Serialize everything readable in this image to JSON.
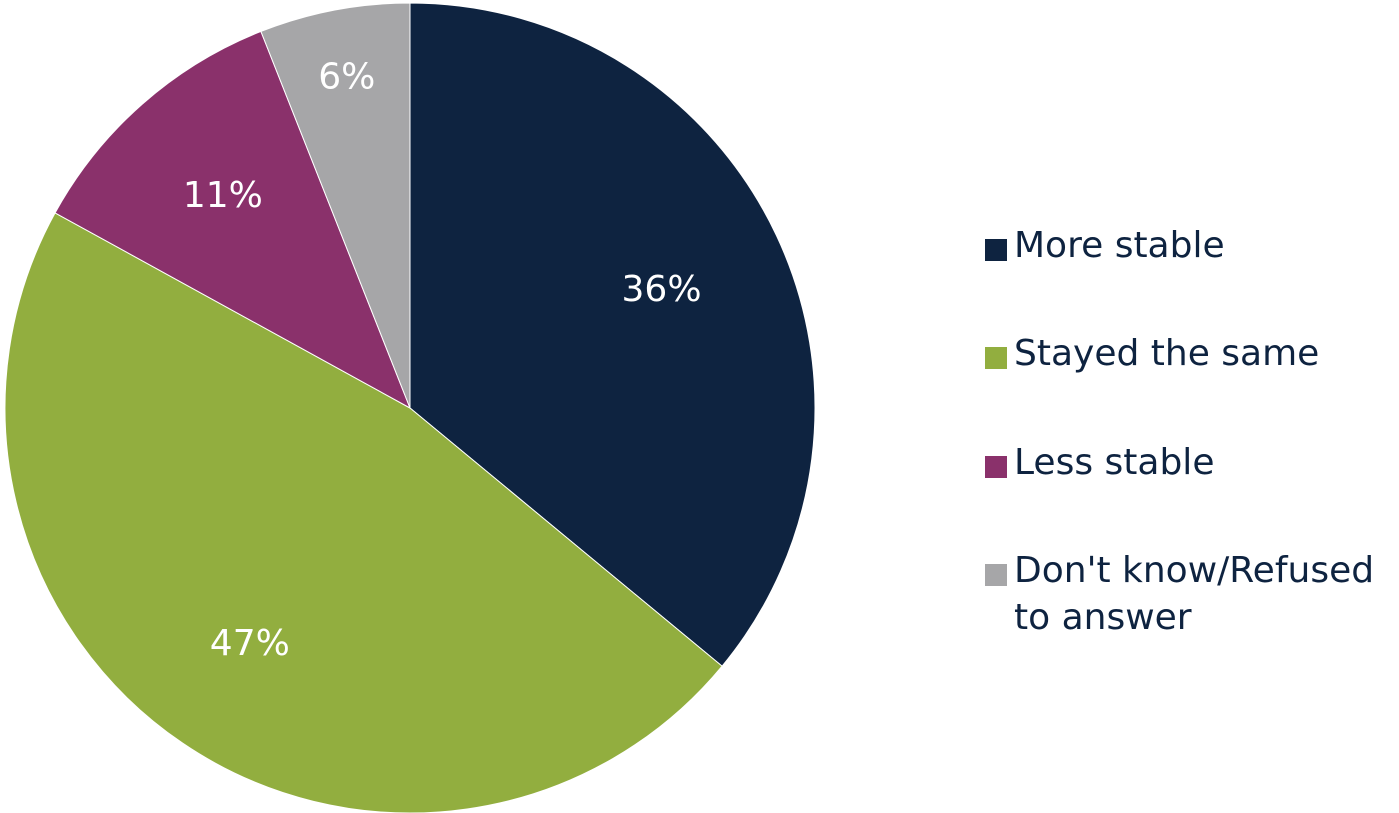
{
  "chart_data": {
    "type": "pie",
    "title": "",
    "start_angle": "12 o'clock",
    "direction": "clockwise",
    "slices": [
      {
        "label": "More stable",
        "value": 36,
        "value_label": "36%",
        "color": "#0e2340",
        "label_color": "#ffffff"
      },
      {
        "label": "Stayed the same",
        "value": 47,
        "value_label": "47%",
        "color": "#92ae3f",
        "label_color": "#ffffff"
      },
      {
        "label": "Less stable",
        "value": 11,
        "value_label": "11%",
        "color": "#8a316b",
        "label_color": "#ffffff"
      },
      {
        "label": "Don't know/Refused\nto answer",
        "value": 6,
        "value_label": "6%",
        "color": "#a6a6a8",
        "label_color": "#ffffff"
      }
    ],
    "legend": {
      "position": "right",
      "text_color": "#0e2340"
    }
  }
}
